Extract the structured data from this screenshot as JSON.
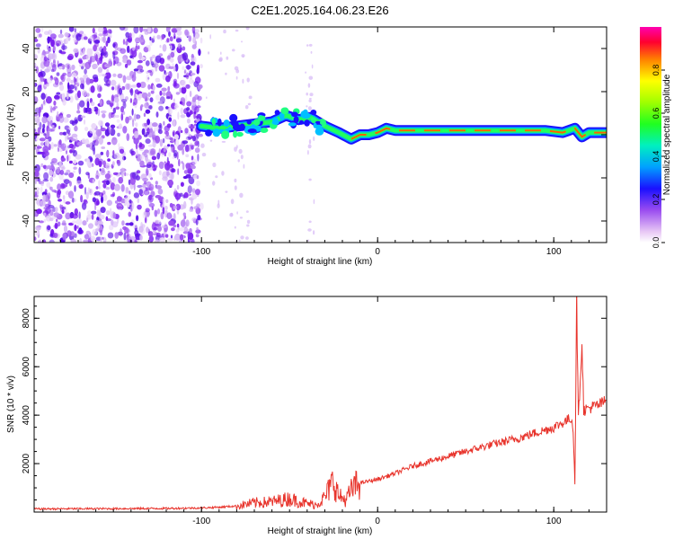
{
  "title": "C2E1.2025.164.06.23.E26",
  "chart_data": [
    {
      "type": "heatmap",
      "xlabel": "Height of straight line (km)",
      "ylabel": "Frequency (Hz)",
      "xlim": [
        -195,
        130
      ],
      "ylim": [
        -50,
        50
      ],
      "xticks": [
        -100,
        0,
        100
      ],
      "yticks": [
        -40,
        -20,
        0,
        20,
        40
      ],
      "colorbar": {
        "label": "Normalized spectral amplitude",
        "range": [
          0,
          1
        ],
        "ticks": [
          0.0,
          0.2,
          0.4,
          0.6,
          0.8
        ]
      },
      "ridge": [
        {
          "x": -100,
          "y": 4
        },
        {
          "x": -90,
          "y": 3
        },
        {
          "x": -80,
          "y": 4
        },
        {
          "x": -70,
          "y": 5
        },
        {
          "x": -60,
          "y": 6
        },
        {
          "x": -52,
          "y": 9
        },
        {
          "x": -45,
          "y": 7
        },
        {
          "x": -38,
          "y": 8
        },
        {
          "x": -30,
          "y": 4
        },
        {
          "x": -22,
          "y": 1
        },
        {
          "x": -15,
          "y": -2
        },
        {
          "x": -10,
          "y": 0
        },
        {
          "x": -5,
          "y": 0
        },
        {
          "x": 0,
          "y": 1
        },
        {
          "x": 5,
          "y": 3
        },
        {
          "x": 10,
          "y": 2
        },
        {
          "x": 20,
          "y": 2
        },
        {
          "x": 40,
          "y": 2
        },
        {
          "x": 60,
          "y": 2
        },
        {
          "x": 80,
          "y": 2
        },
        {
          "x": 95,
          "y": 2
        },
        {
          "x": 105,
          "y": 1
        },
        {
          "x": 112,
          "y": 3
        },
        {
          "x": 116,
          "y": -1
        },
        {
          "x": 120,
          "y": 1
        },
        {
          "x": 130,
          "y": 1
        }
      ]
    },
    {
      "type": "line",
      "xlabel": "Height of straight line (km)",
      "ylabel": "SNR (10 * v/v)",
      "xlim": [
        -195,
        130
      ],
      "ylim": [
        0,
        8900
      ],
      "xticks": [
        -100,
        0,
        100
      ],
      "yticks": [
        2000,
        4000,
        6000,
        8000
      ],
      "color": "#e8342c",
      "series": [
        {
          "values": [
            {
              "x": -195,
              "y": 130
            },
            {
              "x": -150,
              "y": 140
            },
            {
              "x": -120,
              "y": 150
            },
            {
              "x": -100,
              "y": 170
            },
            {
              "x": -90,
              "y": 200
            },
            {
              "x": -80,
              "y": 250
            },
            {
              "x": -70,
              "y": 380
            },
            {
              "x": -60,
              "y": 420
            },
            {
              "x": -50,
              "y": 550
            },
            {
              "x": -40,
              "y": 350
            },
            {
              "x": -35,
              "y": 300
            },
            {
              "x": -30,
              "y": 600
            },
            {
              "x": -25,
              "y": 1300
            },
            {
              "x": -22,
              "y": 650
            },
            {
              "x": -18,
              "y": 500
            },
            {
              "x": -14,
              "y": 1000
            },
            {
              "x": -10,
              "y": 1200
            },
            {
              "x": 0,
              "y": 1350
            },
            {
              "x": 10,
              "y": 1600
            },
            {
              "x": 20,
              "y": 1900
            },
            {
              "x": 40,
              "y": 2300
            },
            {
              "x": 60,
              "y": 2700
            },
            {
              "x": 80,
              "y": 3050
            },
            {
              "x": 100,
              "y": 3500
            },
            {
              "x": 108,
              "y": 3800
            },
            {
              "x": 110,
              "y": 3900
            },
            {
              "x": 111,
              "y": 3400
            },
            {
              "x": 112,
              "y": 1200
            },
            {
              "x": 113,
              "y": 8900
            },
            {
              "x": 114,
              "y": 3800
            },
            {
              "x": 116,
              "y": 7100
            },
            {
              "x": 117,
              "y": 4200
            },
            {
              "x": 120,
              "y": 4300
            },
            {
              "x": 125,
              "y": 4400
            },
            {
              "x": 130,
              "y": 4600
            }
          ]
        }
      ]
    }
  ]
}
